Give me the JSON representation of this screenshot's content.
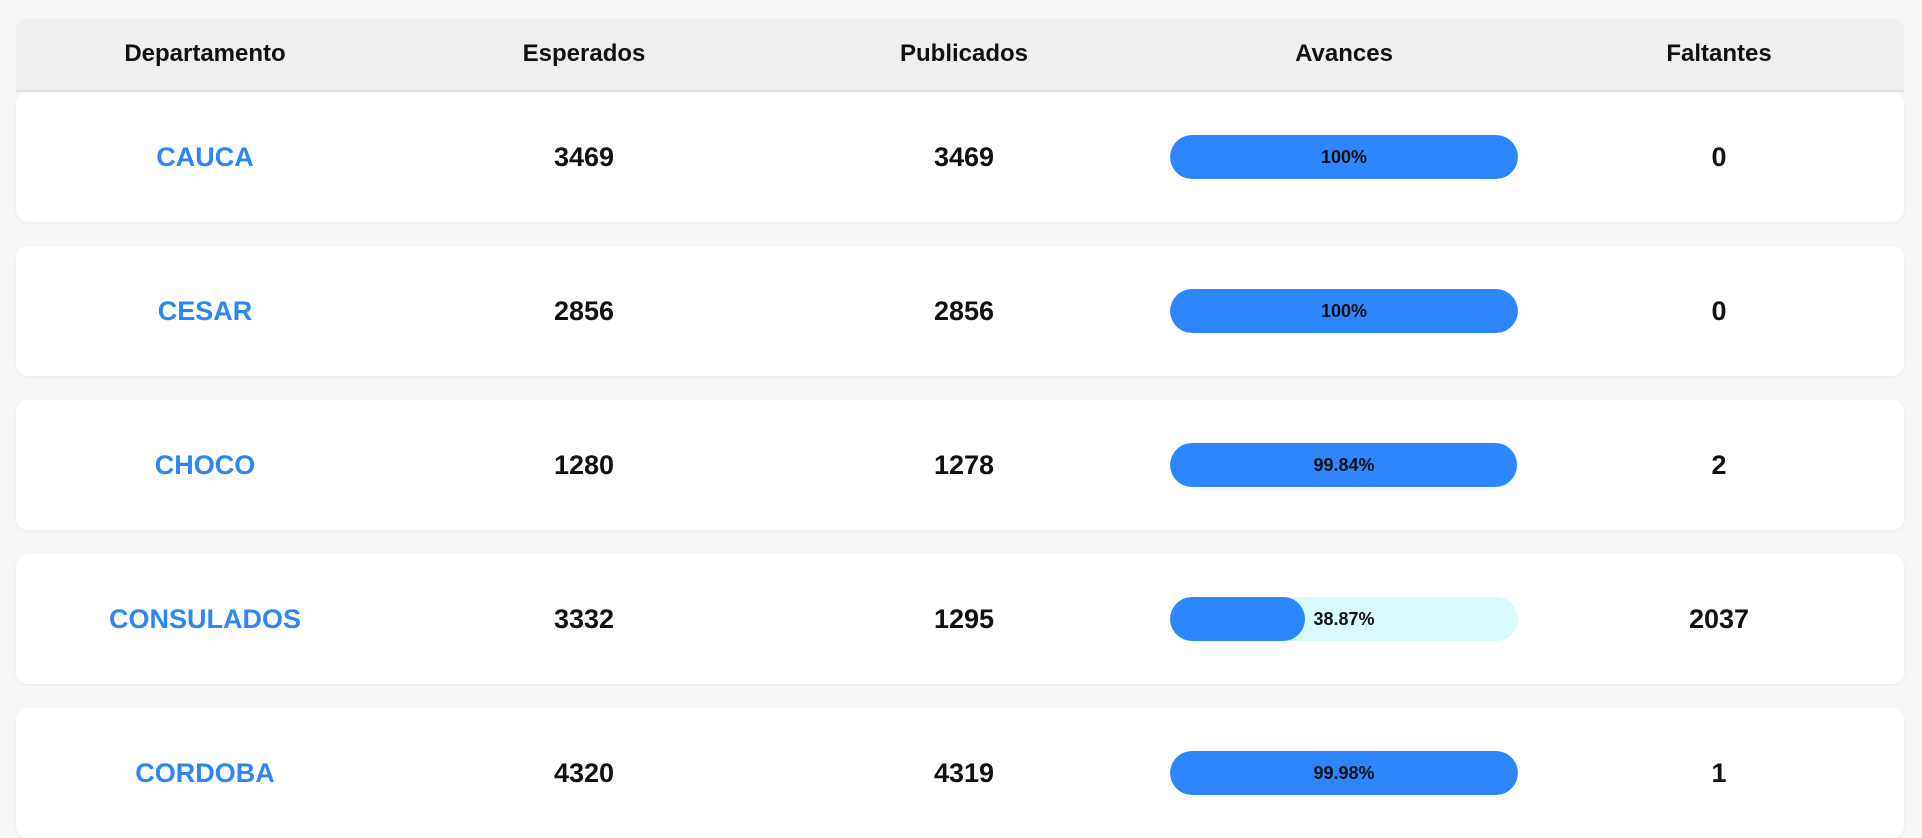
{
  "table": {
    "headers": [
      "Departamento",
      "Esperados",
      "Publicados",
      "Avances",
      "Faltantes"
    ],
    "rows": [
      {
        "departamento": "CAUCA",
        "esperados": "3469",
        "publicados": "3469",
        "avance_label": "100%",
        "avance_fraction": 1.0,
        "faltantes": "0"
      },
      {
        "departamento": "CESAR",
        "esperados": "2856",
        "publicados": "2856",
        "avance_label": "100%",
        "avance_fraction": 1.0,
        "faltantes": "0"
      },
      {
        "departamento": "CHOCO",
        "esperados": "1280",
        "publicados": "1278",
        "avance_label": "99.84%",
        "avance_fraction": 0.9984,
        "faltantes": "2"
      },
      {
        "departamento": "CONSULADOS",
        "esperados": "3332",
        "publicados": "1295",
        "avance_label": "38.87%",
        "avance_fraction": 0.3887,
        "faltantes": "2037"
      },
      {
        "departamento": "CORDOBA",
        "esperados": "4320",
        "publicados": "4319",
        "avance_label": "99.98%",
        "avance_fraction": 0.9998,
        "faltantes": "1"
      }
    ]
  },
  "colors": {
    "link": "#2e86f5",
    "progress_fill": "#2e86ff",
    "progress_track": "#d9fafa",
    "header_bg": "#efefef"
  }
}
